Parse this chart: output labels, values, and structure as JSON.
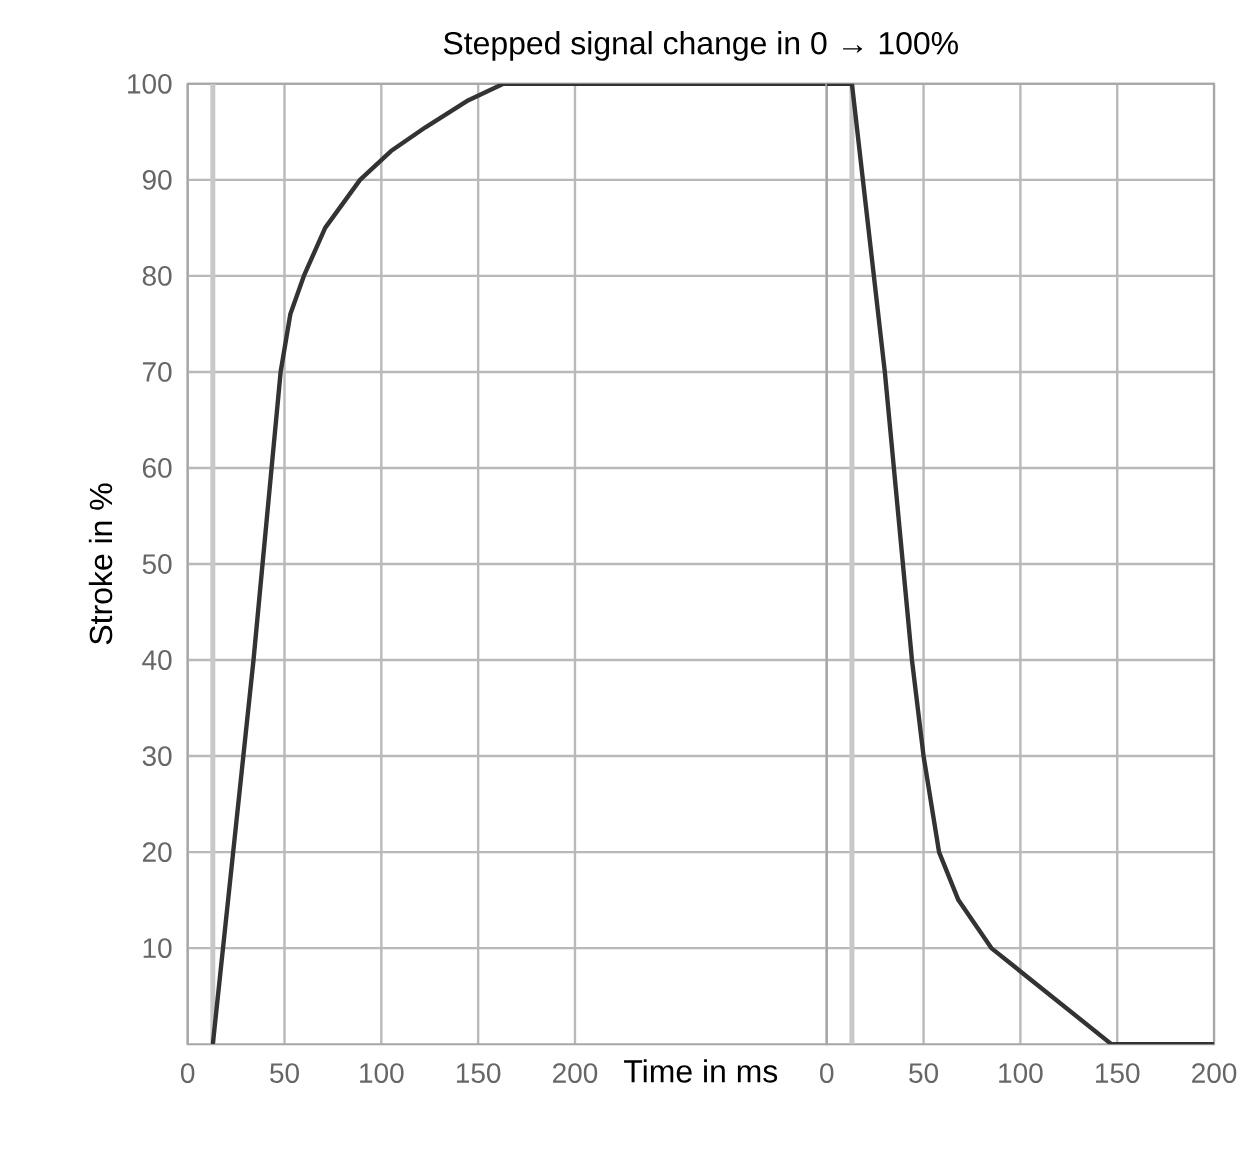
{
  "chart_data": [
    {
      "type": "line",
      "title": "Stepped signal change in 0 → 100%",
      "xlabel": "Time in ms",
      "ylabel": "Stroke in %",
      "series": [
        {
          "color": "#333333",
          "x": [
            13,
            34,
            48,
            53,
            60,
            71,
            89,
            105,
            123,
            145,
            163,
            330
          ],
          "values": [
            0,
            40,
            70,
            76,
            80,
            85,
            90,
            93,
            95.5,
            98.3,
            100,
            100
          ]
        }
      ],
      "xlim": [
        0,
        330
      ],
      "ylim": [
        0,
        100
      ],
      "xticks": [
        0,
        50,
        100,
        150,
        200
      ],
      "yticks": [
        10,
        20,
        30,
        40,
        50,
        60,
        70,
        80,
        90,
        100
      ],
      "ref_lines": [
        {
          "axis": "x",
          "value": 13,
          "color": "#c8c8c8"
        }
      ],
      "grid": true,
      "marker": "none",
      "line_style": "solid"
    },
    {
      "type": "line",
      "series": [
        {
          "color": "#333333",
          "x": [
            0,
            13,
            30,
            44,
            50,
            58,
            68,
            85,
            116,
            147,
            200
          ],
          "values": [
            100,
            100,
            70,
            40,
            30,
            20,
            15,
            10,
            5,
            0,
            0
          ]
        }
      ],
      "xlim": [
        0,
        200
      ],
      "ylim": [
        0,
        100
      ],
      "xticks": [
        0,
        50,
        100,
        150,
        200
      ],
      "yticks": [
        10,
        20,
        30,
        40,
        50,
        60,
        70,
        80,
        90,
        100
      ],
      "tick_labels": "x",
      "ref_lines": [
        {
          "axis": "x",
          "value": 13,
          "color": "#c8c8c8"
        }
      ],
      "grid": true,
      "marker": "none",
      "line_style": "solid"
    }
  ]
}
